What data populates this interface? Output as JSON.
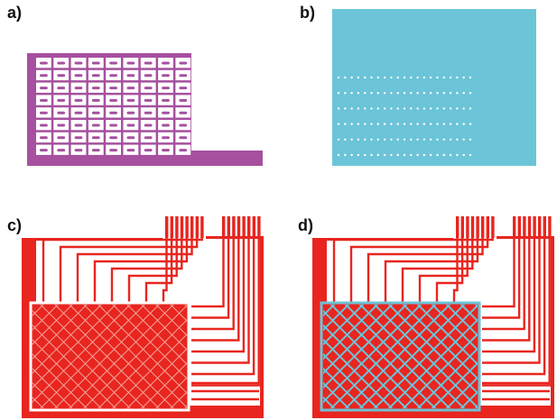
{
  "labels": {
    "a": "a)",
    "b": "b)",
    "c": "c)",
    "d": "d)"
  },
  "colors": {
    "purple": "#a6509f",
    "cyan": "#6cc4d8",
    "red": "#e8251f",
    "white": "#ffffff",
    "mesh_light": "#f2a39b"
  },
  "panel_a": {
    "rows": 8,
    "cols": 9
  },
  "panel_b": {
    "dot_rows": 6,
    "dot_cols": 21
  },
  "panel_c": {
    "top_connectors_left": 8,
    "top_connectors_right": 8,
    "right_traces": 9
  },
  "panel_d": {
    "top_connectors_left": 8,
    "top_connectors_right": 8,
    "right_traces": 9
  }
}
